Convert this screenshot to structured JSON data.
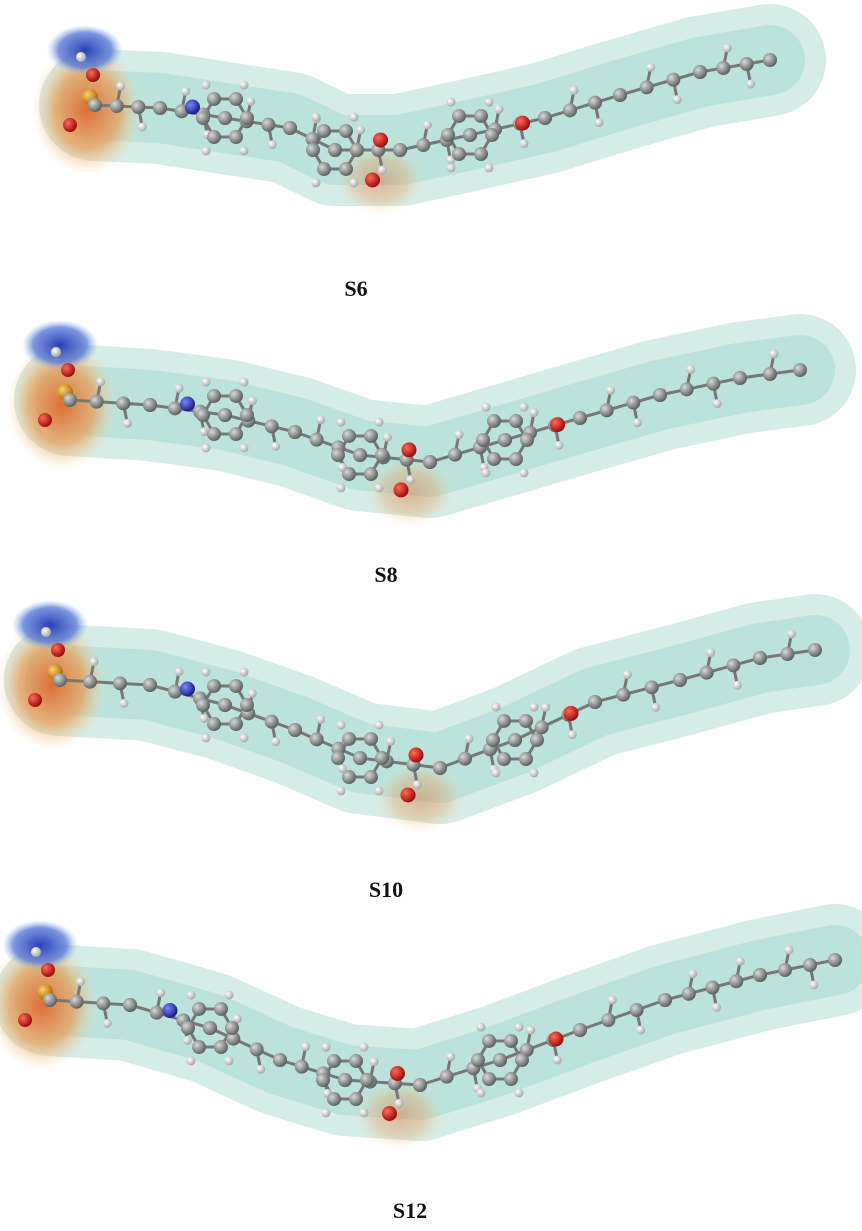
{
  "panels": [
    {
      "label": "S6"
    },
    {
      "label": "S8"
    },
    {
      "label": "S10"
    },
    {
      "label": "S12"
    }
  ]
}
